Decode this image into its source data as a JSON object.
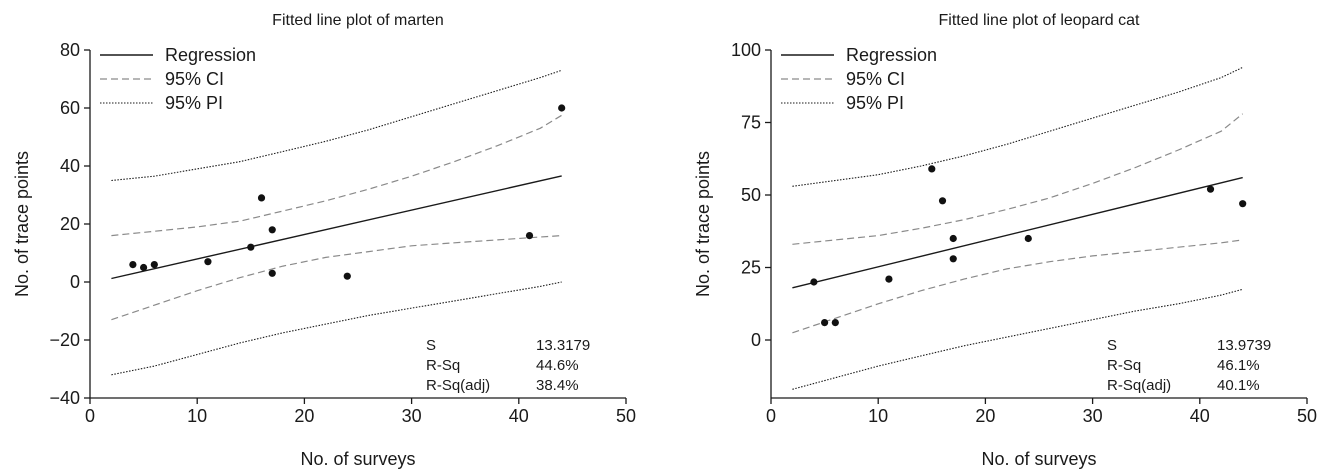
{
  "legend": {
    "regression": "Regression",
    "ci": "95% CI",
    "pi": "95% PI"
  },
  "chart_data": [
    {
      "type": "scatter",
      "title": "Fitted line plot of marten",
      "xlabel": "No. of surveys",
      "ylabel": "No. of trace points",
      "xlim": [
        0,
        50
      ],
      "ylim": [
        -40,
        80
      ],
      "xticks": [
        0,
        10,
        20,
        30,
        40,
        50
      ],
      "yticks": [
        -40,
        -20,
        0,
        20,
        40,
        60,
        80
      ],
      "ytick_labels": [
        "−40",
        "−20",
        "0",
        "20",
        "40",
        "60",
        "80"
      ],
      "points": [
        {
          "x": 4,
          "y": 6
        },
        {
          "x": 5,
          "y": 5
        },
        {
          "x": 6,
          "y": 6
        },
        {
          "x": 11,
          "y": 7
        },
        {
          "x": 15,
          "y": 12
        },
        {
          "x": 16,
          "y": 29
        },
        {
          "x": 17,
          "y": 18
        },
        {
          "x": 17,
          "y": 3
        },
        {
          "x": 24,
          "y": 2
        },
        {
          "x": 41,
          "y": 16
        },
        {
          "x": 44,
          "y": 60
        }
      ],
      "regression": [
        [
          2,
          1.2
        ],
        [
          44,
          36.6
        ]
      ],
      "ci_upper": [
        [
          2,
          16
        ],
        [
          6,
          17.5
        ],
        [
          10,
          19
        ],
        [
          14,
          21
        ],
        [
          18,
          24.5
        ],
        [
          22,
          28
        ],
        [
          26,
          32
        ],
        [
          30,
          36.5
        ],
        [
          34,
          41.5
        ],
        [
          38,
          47
        ],
        [
          42,
          53
        ],
        [
          44,
          57.5
        ]
      ],
      "ci_lower": [
        [
          2,
          -13
        ],
        [
          6,
          -8
        ],
        [
          10,
          -3
        ],
        [
          14,
          1.5
        ],
        [
          18,
          5.5
        ],
        [
          22,
          8.5
        ],
        [
          26,
          10.5
        ],
        [
          30,
          12.5
        ],
        [
          34,
          13.5
        ],
        [
          38,
          14.5
        ],
        [
          42,
          15.5
        ],
        [
          44,
          16
        ]
      ],
      "pi_upper": [
        [
          2,
          35
        ],
        [
          6,
          36.5
        ],
        [
          10,
          39
        ],
        [
          14,
          41.5
        ],
        [
          18,
          45
        ],
        [
          22,
          48.5
        ],
        [
          26,
          52.5
        ],
        [
          30,
          57
        ],
        [
          34,
          61.5
        ],
        [
          38,
          66
        ],
        [
          42,
          70.5
        ],
        [
          44,
          73
        ]
      ],
      "pi_lower": [
        [
          2,
          -32
        ],
        [
          6,
          -29
        ],
        [
          10,
          -25
        ],
        [
          14,
          -21
        ],
        [
          18,
          -17.5
        ],
        [
          22,
          -14.5
        ],
        [
          26,
          -11.5
        ],
        [
          30,
          -9
        ],
        [
          34,
          -6.5
        ],
        [
          38,
          -4
        ],
        [
          42,
          -1.5
        ],
        [
          44,
          0
        ]
      ],
      "stats": [
        {
          "label": "S",
          "value": "13.3179"
        },
        {
          "label": "R-Sq",
          "value": "44.6%"
        },
        {
          "label": "R-Sq(adj)",
          "value": "38.4%"
        }
      ],
      "legend_position": "top-left",
      "grid": false
    },
    {
      "type": "scatter",
      "title": "Fitted line plot of leopard cat",
      "xlabel": "No. of surveys",
      "ylabel": "No. of trace points",
      "xlim": [
        0,
        50
      ],
      "ylim": [
        -20,
        100
      ],
      "xticks": [
        0,
        10,
        20,
        30,
        40,
        50
      ],
      "yticks": [
        0,
        25,
        50,
        75,
        100
      ],
      "ytick_labels": [
        "0",
        "25",
        "50",
        "75",
        "100"
      ],
      "points": [
        {
          "x": 4,
          "y": 20
        },
        {
          "x": 5,
          "y": 6
        },
        {
          "x": 6,
          "y": 6
        },
        {
          "x": 11,
          "y": 21
        },
        {
          "x": 15,
          "y": 59
        },
        {
          "x": 16,
          "y": 48
        },
        {
          "x": 17,
          "y": 35
        },
        {
          "x": 17,
          "y": 28
        },
        {
          "x": 24,
          "y": 35
        },
        {
          "x": 41,
          "y": 52
        },
        {
          "x": 44,
          "y": 47
        }
      ],
      "regression": [
        [
          2,
          18
        ],
        [
          44,
          56
        ]
      ],
      "ci_upper": [
        [
          2,
          33
        ],
        [
          6,
          34.5
        ],
        [
          10,
          36
        ],
        [
          14,
          38.5
        ],
        [
          18,
          41.5
        ],
        [
          22,
          45
        ],
        [
          26,
          49
        ],
        [
          30,
          54
        ],
        [
          34,
          59.5
        ],
        [
          38,
          65.5
        ],
        [
          42,
          72
        ],
        [
          44,
          78
        ]
      ],
      "ci_lower": [
        [
          2,
          2.5
        ],
        [
          6,
          7.5
        ],
        [
          10,
          12.5
        ],
        [
          14,
          17
        ],
        [
          18,
          21
        ],
        [
          22,
          24.5
        ],
        [
          26,
          27
        ],
        [
          30,
          29
        ],
        [
          34,
          30.5
        ],
        [
          38,
          32
        ],
        [
          42,
          33.5
        ],
        [
          44,
          34.5
        ]
      ],
      "pi_upper": [
        [
          2,
          53
        ],
        [
          6,
          55
        ],
        [
          10,
          57
        ],
        [
          14,
          60
        ],
        [
          18,
          63.5
        ],
        [
          22,
          67.5
        ],
        [
          26,
          72
        ],
        [
          30,
          76.5
        ],
        [
          34,
          81
        ],
        [
          38,
          85.5
        ],
        [
          42,
          90.5
        ],
        [
          44,
          94
        ]
      ],
      "pi_lower": [
        [
          2,
          -17
        ],
        [
          6,
          -13
        ],
        [
          10,
          -9
        ],
        [
          14,
          -5.5
        ],
        [
          18,
          -2
        ],
        [
          22,
          1
        ],
        [
          26,
          4
        ],
        [
          30,
          7
        ],
        [
          34,
          10
        ],
        [
          38,
          12.5
        ],
        [
          42,
          15.5
        ],
        [
          44,
          17.5
        ]
      ],
      "stats": [
        {
          "label": "S",
          "value": "13.9739"
        },
        {
          "label": "R-Sq",
          "value": "46.1%"
        },
        {
          "label": "R-Sq(adj)",
          "value": "40.1%"
        }
      ],
      "legend_position": "top-left",
      "grid": false
    }
  ]
}
